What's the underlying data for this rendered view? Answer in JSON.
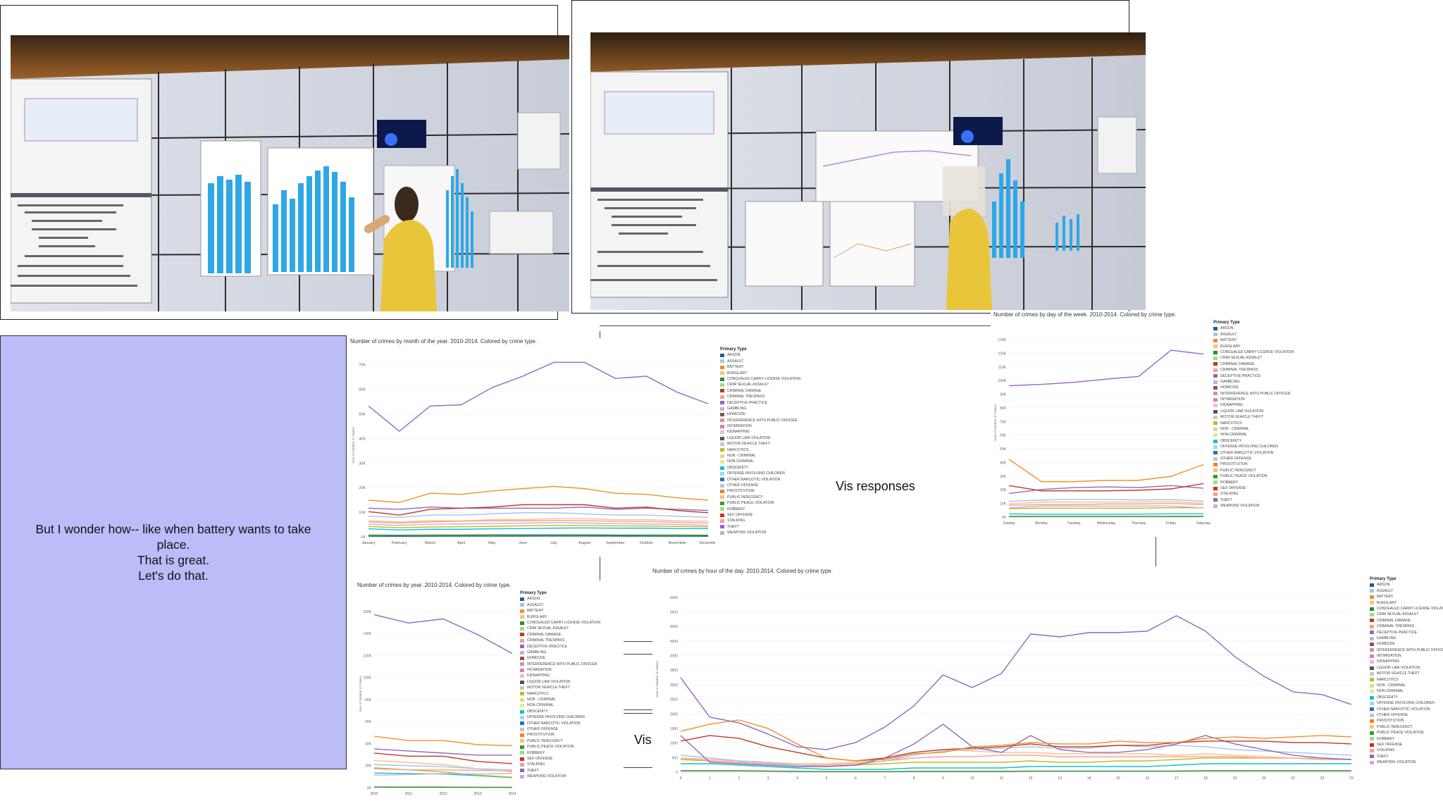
{
  "caption": {
    "lines": [
      "But I wonder how-- like when battery wants to take",
      "place.",
      "That is great.",
      "Let's do that."
    ]
  },
  "float_labels": {
    "vis_responses": "Vis responses",
    "vis": "Vis"
  },
  "legend_title": "Primary Type",
  "crime_types": [
    {
      "name": "ARSON",
      "color": "#1f5f8b"
    },
    {
      "name": "ASSAULT",
      "color": "#9fc7e6"
    },
    {
      "name": "BATTERY",
      "color": "#f28e2b"
    },
    {
      "name": "BURGLARY",
      "color": "#ffbe7d"
    },
    {
      "name": "CONCEALED CARRY LICENSE VIOLATION",
      "color": "#2e8b2e"
    },
    {
      "name": "CRIM SEXUAL ASSAULT",
      "color": "#98df8a"
    },
    {
      "name": "CRIMINAL DAMAGE",
      "color": "#c0392b"
    },
    {
      "name": "CRIMINAL TRESPASS",
      "color": "#ff9896"
    },
    {
      "name": "DECEPTIVE PRACTICE",
      "color": "#8e6bb8"
    },
    {
      "name": "GAMBLING",
      "color": "#c5b0d5"
    },
    {
      "name": "HOMICIDE",
      "color": "#8c564b"
    },
    {
      "name": "INTERFERENCE WITH PUBLIC OFFICER",
      "color": "#c49c94"
    },
    {
      "name": "INTIMIDATION",
      "color": "#e377c2"
    },
    {
      "name": "KIDNAPPING",
      "color": "#f7b6d2"
    },
    {
      "name": "LIQUOR LAW VIOLATION",
      "color": "#555555"
    },
    {
      "name": "MOTOR VEHICLE THEFT",
      "color": "#c7c7c7"
    },
    {
      "name": "NARCOTICS",
      "color": "#bcbd22"
    },
    {
      "name": "NON - CRIMINAL",
      "color": "#dbdb8d"
    },
    {
      "name": "NON-CRIMINAL",
      "color": "#e6e69a"
    },
    {
      "name": "OBSCENITY",
      "color": "#17becf"
    },
    {
      "name": "OFFENSE INVOLVING CHILDREN",
      "color": "#9edae5"
    },
    {
      "name": "OTHER NARCOTIC VIOLATION",
      "color": "#1f77b4"
    },
    {
      "name": "OTHER OFFENSE",
      "color": "#aec7e8"
    },
    {
      "name": "PROSTITUTION",
      "color": "#ff7f0e"
    },
    {
      "name": "PUBLIC INDECENCY",
      "color": "#ffbb78"
    },
    {
      "name": "PUBLIC PEACE VIOLATION",
      "color": "#2ca02c"
    },
    {
      "name": "ROBBERY",
      "color": "#98df8a"
    },
    {
      "name": "SEX OFFENSE",
      "color": "#d62728"
    },
    {
      "name": "STALKING",
      "color": "#ff9896"
    },
    {
      "name": "THEFT",
      "color": "#9467bd"
    },
    {
      "name": "WEAPONS VIOLATION",
      "color": "#c5b0d5"
    }
  ],
  "chart_data": [
    {
      "id": "month",
      "type": "line",
      "title": "Number of crimes by month of the year.   2010-2014.  Colored by crime type.",
      "ylabel": "Sum of Number of Crimes",
      "categories": [
        "January",
        "February",
        "March",
        "April",
        "May",
        "June",
        "July",
        "August",
        "September",
        "October",
        "November",
        "December"
      ],
      "yticks": [
        "0K",
        "10K",
        "20K",
        "30K",
        "40K",
        "50K",
        "60K",
        "70K"
      ],
      "ylim": [
        0,
        75000
      ],
      "series": [
        {
          "name": "THEFT",
          "color": "#9467bd",
          "values": [
            57000,
            46000,
            57000,
            57500,
            65000,
            70000,
            76000,
            76000,
            69000,
            70000,
            63000,
            58000
          ]
        },
        {
          "name": "BATTERY",
          "color": "#f28e2b",
          "values": [
            16000,
            15000,
            19000,
            18500,
            20000,
            21000,
            22000,
            21000,
            19000,
            18500,
            17000,
            16000
          ]
        },
        {
          "name": "CRIMINAL DAMAGE",
          "color": "#c0392b",
          "values": [
            11000,
            9500,
            12000,
            12500,
            13000,
            14000,
            14000,
            14000,
            12500,
            13000,
            11500,
            10500
          ]
        },
        {
          "name": "NARCOTICS",
          "color": "#8e6bb8",
          "values": [
            12500,
            12000,
            13000,
            12500,
            12500,
            12500,
            12500,
            13000,
            12000,
            12500,
            12000,
            11500
          ]
        },
        {
          "name": "ASSAULT",
          "color": "#9fc7e6",
          "values": [
            9000,
            8500,
            9500,
            9500,
            10000,
            10500,
            10500,
            10000,
            9500,
            9500,
            9000,
            8500
          ]
        },
        {
          "name": "BURGLARY",
          "color": "#ffbe7d",
          "values": [
            7000,
            6500,
            7000,
            7000,
            7500,
            7500,
            8000,
            8000,
            7500,
            7500,
            7000,
            6800
          ]
        },
        {
          "name": "OTHER OFFENSE",
          "color": "#ff9896",
          "values": [
            6500,
            6000,
            6500,
            6800,
            7000,
            7000,
            7200,
            7000,
            6800,
            6700,
            6300,
            6000
          ]
        },
        {
          "name": "DECEPTIVE PRACTICE",
          "color": "#c5b0d5",
          "values": [
            5500,
            5000,
            5500,
            5600,
            5800,
            6000,
            6200,
            6000,
            5800,
            5600,
            5400,
            5000
          ]
        },
        {
          "name": "MOTOR VEHICLE THEFT",
          "color": "#bcbd22",
          "values": [
            4500,
            4000,
            4300,
            4400,
            4600,
            4800,
            5000,
            5000,
            4800,
            4700,
            4500,
            4400
          ]
        },
        {
          "name": "ROBBERY",
          "color": "#17becf",
          "values": [
            3500,
            3000,
            3300,
            3300,
            3500,
            3600,
            3800,
            3900,
            3800,
            3800,
            3600,
            3600
          ]
        },
        {
          "name": "ARSON",
          "color": "#2e8b2e",
          "values": [
            800,
            700,
            800,
            800,
            900,
            900,
            900,
            900,
            800,
            800,
            800,
            700
          ]
        },
        {
          "name": "HOMICIDE",
          "color": "#1f5f8b",
          "values": [
            300,
            250,
            300,
            320,
            350,
            380,
            400,
            400,
            350,
            330,
            300,
            280
          ]
        }
      ]
    },
    {
      "id": "weekday",
      "type": "line",
      "title": "Number of crimes by day of the week.   2010-2014.  Colored by crime type.",
      "ylabel": "Sum of Number of Crimes",
      "categories": [
        "Sunday",
        "Monday",
        "Tuesday",
        "Wednesday",
        "Thursday",
        "Friday",
        "Saturday"
      ],
      "yticks": [
        "0K",
        "10K",
        "20K",
        "30K",
        "40K",
        "50K",
        "60K",
        "70K",
        "80K",
        "90K",
        "100K",
        "110K",
        "120K",
        "130K"
      ],
      "ylim": [
        0,
        135000
      ],
      "series": [
        {
          "name": "THEFT",
          "color": "#9467bd",
          "values": [
            100000,
            101000,
            102500,
            105000,
            107000,
            127000,
            124000
          ]
        },
        {
          "name": "BATTERY",
          "color": "#f28e2b",
          "values": [
            44000,
            27000,
            27000,
            28000,
            28000,
            31000,
            40000
          ]
        },
        {
          "name": "CRIMINAL DAMAGE",
          "color": "#c0392b",
          "values": [
            24000,
            20000,
            20000,
            20000,
            20500,
            21500,
            25500
          ]
        },
        {
          "name": "NARCOTICS",
          "color": "#8e6bb8",
          "values": [
            18000,
            21000,
            22500,
            23000,
            22500,
            24000,
            22000
          ]
        },
        {
          "name": "ASSAULT",
          "color": "#9fc7e6",
          "values": [
            12000,
            13000,
            13500,
            13500,
            13000,
            13500,
            12000
          ]
        },
        {
          "name": "BURGLARY",
          "color": "#ffbe7d",
          "values": [
            10000,
            11500,
            11500,
            11500,
            11500,
            12000,
            10500
          ]
        },
        {
          "name": "OTHER OFFENSE",
          "color": "#ff9896",
          "values": [
            9000,
            9500,
            9500,
            10000,
            10000,
            10500,
            9500
          ]
        },
        {
          "name": "DECEPTIVE PRACTICE",
          "color": "#c5b0d5",
          "values": [
            7000,
            8500,
            8500,
            8500,
            8500,
            8500,
            7000
          ]
        },
        {
          "name": "MOTOR VEHICLE THEFT",
          "color": "#bcbd22",
          "values": [
            6500,
            6800,
            6800,
            6800,
            6800,
            7200,
            7000
          ]
        },
        {
          "name": "ROBBERY",
          "color": "#17becf",
          "values": [
            2500,
            2200,
            2200,
            2200,
            2300,
            2500,
            2600
          ]
        },
        {
          "name": "ARSON",
          "color": "#2e8b2e",
          "values": [
            600,
            550,
            550,
            550,
            550,
            600,
            650
          ]
        }
      ]
    },
    {
      "id": "year",
      "type": "line",
      "title": "Number of crimes by year.   2010-2014.  Colored by crime type.",
      "ylabel": "Sum of Number of Crimes",
      "categories": [
        "2010",
        "2011",
        "2012",
        "2013",
        "2014"
      ],
      "yticks": [
        "0K",
        "20K",
        "40K",
        "60K",
        "80K",
        "100K",
        "120K",
        "140K",
        "160K"
      ],
      "ylim": [
        0,
        168000
      ],
      "series": [
        {
          "name": "THEFT",
          "color": "#9467bd",
          "values": [
            165000,
            157000,
            161000,
            146000,
            128000
          ]
        },
        {
          "name": "BATTERY",
          "color": "#f28e2b",
          "values": [
            49000,
            45000,
            45000,
            41000,
            40000
          ]
        },
        {
          "name": "CRIMINAL DAMAGE",
          "color": "#c0392b",
          "values": [
            33000,
            30000,
            30000,
            25000,
            23000
          ]
        },
        {
          "name": "NARCOTICS",
          "color": "#8e6bb8",
          "values": [
            37000,
            35000,
            33000,
            31000,
            31000
          ]
        },
        {
          "name": "ASSAULT",
          "color": "#9fc7e6",
          "values": [
            22000,
            21000,
            20000,
            18000,
            17000
          ]
        },
        {
          "name": "BURGLARY",
          "color": "#ffbe7d",
          "values": [
            26000,
            24000,
            22000,
            18000,
            15000
          ]
        },
        {
          "name": "OTHER OFFENSE",
          "color": "#ff9896",
          "values": [
            18000,
            17000,
            17000,
            16500,
            16000
          ]
        },
        {
          "name": "DECEPTIVE PRACTICE",
          "color": "#c5b0d5",
          "values": [
            12000,
            12500,
            13500,
            13000,
            13500
          ]
        },
        {
          "name": "MOTOR VEHICLE THEFT",
          "color": "#bcbd22",
          "values": [
            19000,
            17000,
            15000,
            12000,
            10000
          ]
        },
        {
          "name": "ROBBERY",
          "color": "#17becf",
          "values": [
            14000,
            13500,
            13000,
            11500,
            9500
          ]
        },
        {
          "name": "ARSON",
          "color": "#2e8b2e",
          "values": [
            600,
            500,
            500,
            400,
            400
          ]
        }
      ]
    },
    {
      "id": "hour",
      "type": "line",
      "title": "Number of crimes by hour of the day.   2010-2014.  Colored by crime type.",
      "ylabel": "Sum of Number of Crimes",
      "categories": [
        "0",
        "1",
        "2",
        "3",
        "4",
        "5",
        "6",
        "7",
        "8",
        "9",
        "10",
        "11",
        "12",
        "13",
        "14",
        "15",
        "16",
        "17",
        "18",
        "19",
        "20",
        "21",
        "22",
        "23"
      ],
      "yticks": [
        "0",
        "500",
        "1000",
        "1500",
        "2000",
        "2500",
        "3000",
        "3500",
        "4000",
        "4500",
        "5000",
        "5500",
        "6000"
      ],
      "ylim": [
        0,
        6200
      ],
      "series": [
        {
          "name": "THEFT",
          "color": "#9467bd",
          "values": [
            3350,
            1950,
            1750,
            1350,
            900,
            800,
            1050,
            1600,
            2350,
            3450,
            3000,
            3500,
            4900,
            4800,
            4950,
            4950,
            5000,
            5550,
            5000,
            4100,
            3400,
            2850,
            2750,
            2400
          ]
        },
        {
          "name": "BATTERY",
          "color": "#f28e2b",
          "values": [
            1450,
            1700,
            1850,
            1550,
            1000,
            500,
            400,
            450,
            650,
            700,
            900,
            950,
            1050,
            1000,
            1000,
            1100,
            1050,
            1050,
            1200,
            1250,
            1200,
            1250,
            1300,
            1250
          ]
        },
        {
          "name": "CRIMINAL DAMAGE",
          "color": "#c0392b",
          "values": [
            1100,
            1300,
            1200,
            900,
            700,
            500,
            400,
            500,
            700,
            800,
            850,
            900,
            1000,
            900,
            900,
            950,
            950,
            1050,
            1100,
            1100,
            1100,
            1050,
            1050,
            1000
          ]
        },
        {
          "name": "NARCOTICS",
          "color": "#8e6bb8",
          "values": [
            1300,
            350,
            300,
            250,
            200,
            200,
            250,
            500,
            1000,
            1700,
            900,
            700,
            1300,
            800,
            700,
            700,
            800,
            1000,
            1300,
            1000,
            800,
            600,
            500,
            450
          ]
        },
        {
          "name": "ASSAULT",
          "color": "#9fc7e6",
          "values": [
            600,
            500,
            400,
            350,
            250,
            200,
            250,
            400,
            600,
            750,
            800,
            850,
            900,
            850,
            850,
            950,
            900,
            950,
            900,
            800,
            750,
            700,
            650,
            600
          ]
        },
        {
          "name": "BURGLARY",
          "color": "#ffbe7d",
          "values": [
            500,
            450,
            400,
            350,
            300,
            300,
            350,
            500,
            700,
            800,
            750,
            700,
            700,
            650,
            650,
            650,
            650,
            600,
            650,
            600,
            550,
            500,
            500,
            450
          ]
        },
        {
          "name": "OTHER OFFENSE",
          "color": "#ff9896",
          "values": [
            500,
            400,
            350,
            300,
            250,
            250,
            300,
            400,
            500,
            550,
            550,
            600,
            600,
            550,
            550,
            550,
            550,
            550,
            550,
            550,
            500,
            500,
            450,
            450
          ]
        },
        {
          "name": "MOTOR VEHICLE THEFT",
          "color": "#bcbd22",
          "values": [
            450,
            400,
            350,
            300,
            250,
            200,
            250,
            300,
            350,
            350,
            350,
            350,
            400,
            350,
            350,
            400,
            400,
            450,
            500,
            500,
            500,
            500,
            500,
            450
          ]
        },
        {
          "name": "ROBBERY",
          "color": "#17becf",
          "values": [
            300,
            300,
            250,
            200,
            150,
            100,
            100,
            100,
            150,
            150,
            150,
            150,
            200,
            200,
            200,
            200,
            200,
            250,
            300,
            300,
            300,
            300,
            300,
            300
          ]
        },
        {
          "name": "ARSON",
          "color": "#2e8b2e",
          "values": [
            50,
            50,
            50,
            40,
            30,
            20,
            20,
            20,
            30,
            30,
            30,
            30,
            40,
            40,
            40,
            40,
            40,
            40,
            50,
            50,
            50,
            50,
            50,
            50
          ]
        }
      ]
    }
  ]
}
